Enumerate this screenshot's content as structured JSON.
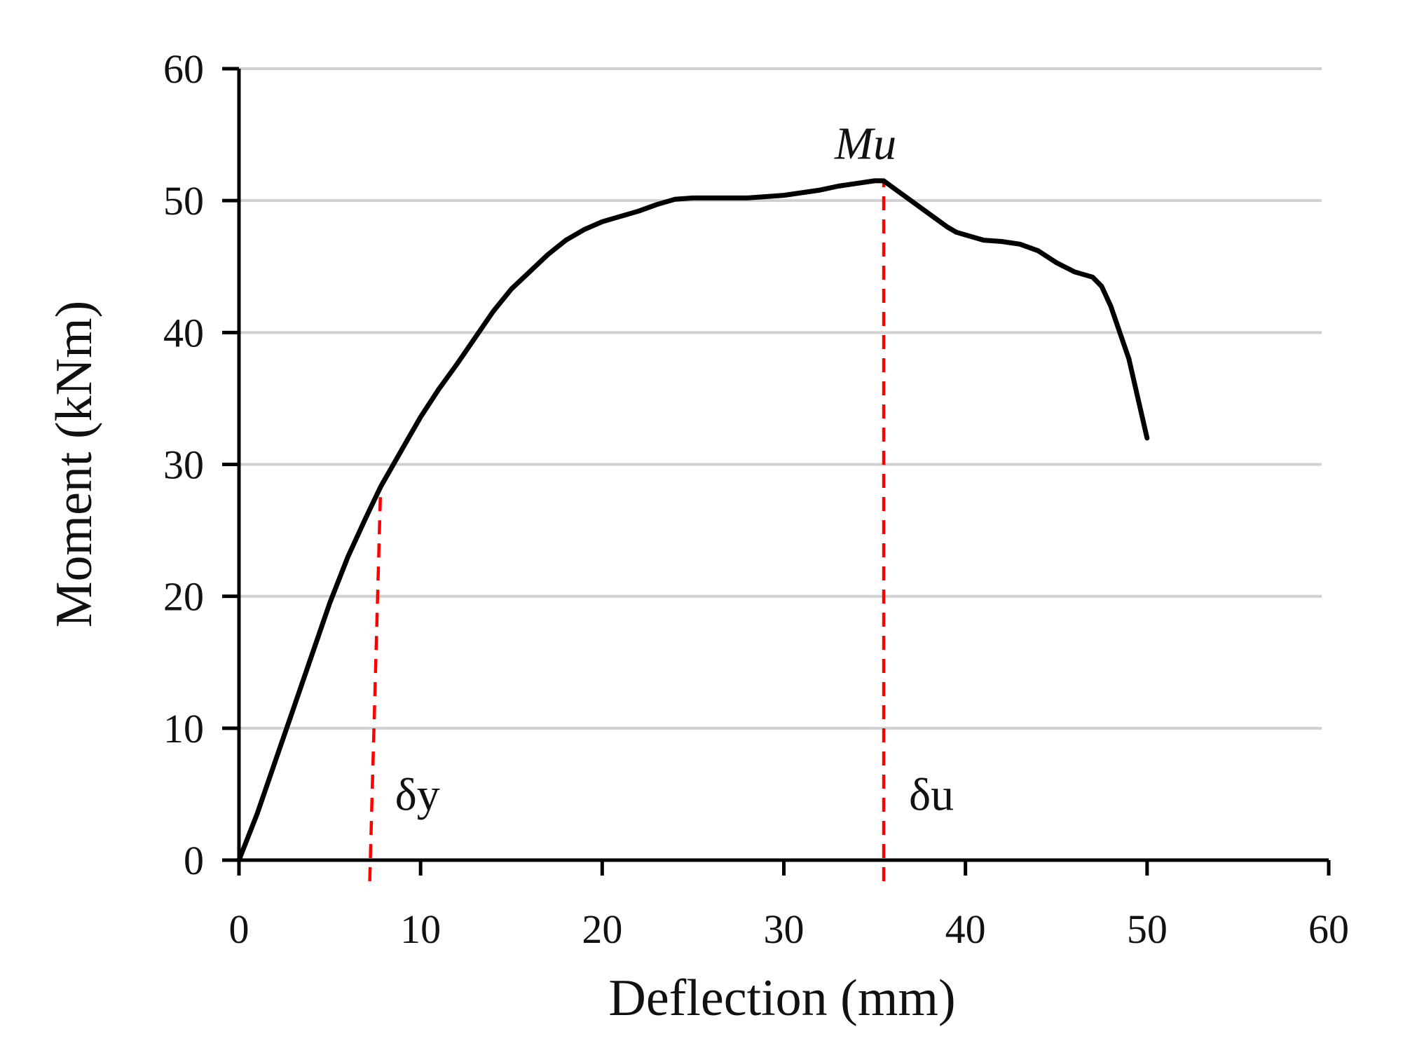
{
  "chart_data": {
    "type": "line",
    "title": "",
    "xlabel": "Deflection (mm)",
    "ylabel": "Moment (kNm)",
    "xlim": [
      0,
      60
    ],
    "ylim": [
      0,
      60
    ],
    "xticks": [
      0,
      10,
      20,
      30,
      40,
      50,
      60
    ],
    "yticks": [
      0,
      10,
      20,
      30,
      40,
      50,
      60
    ],
    "grid": "horizontal",
    "legend": "none",
    "series": [
      {
        "color": "#000000",
        "x": [
          0,
          1,
          2,
          3,
          4,
          5,
          6,
          7,
          7.8,
          9,
          10,
          11,
          12,
          13,
          14,
          15,
          16,
          17,
          18,
          19,
          20,
          21,
          22,
          23,
          24,
          25,
          26,
          27,
          28,
          29,
          30,
          31,
          32,
          33,
          34,
          35,
          35.5,
          36,
          37,
          38,
          39,
          39.5,
          40,
          41,
          42,
          43,
          44,
          45,
          46,
          47,
          47.5,
          48,
          49,
          50
        ],
        "y": [
          0,
          3.5,
          7.5,
          11.5,
          15.5,
          19.5,
          23,
          26,
          28.3,
          31.2,
          33.6,
          35.7,
          37.6,
          39.6,
          41.6,
          43.3,
          44.6,
          45.9,
          47,
          47.8,
          48.4,
          48.8,
          49.2,
          49.7,
          50.1,
          50.2,
          50.2,
          50.2,
          50.2,
          50.3,
          50.4,
          50.6,
          50.8,
          51.1,
          51.3,
          51.5,
          51.5,
          51,
          50,
          49,
          48,
          47.6,
          47.4,
          47,
          46.9,
          46.7,
          46.2,
          45.3,
          44.6,
          44.2,
          43.5,
          42,
          38,
          32
        ]
      }
    ],
    "reference_lines": [
      {
        "label": "δy",
        "x_bottom": 7.2,
        "x_top": 7.8,
        "y_top": 28.3,
        "color": "#ff0000",
        "style": "dashed"
      },
      {
        "label": "δu",
        "x_bottom": 35.5,
        "x_top": 35.5,
        "y_top": 51.5,
        "color": "#ff0000",
        "style": "dashed"
      }
    ],
    "annotations": [
      {
        "text": "Mu",
        "italic": true,
        "x": 34.5,
        "y": 54.5
      }
    ]
  }
}
